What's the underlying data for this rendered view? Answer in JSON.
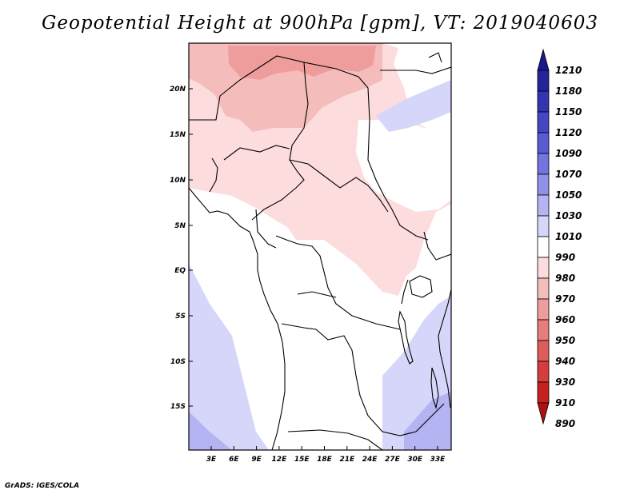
{
  "title": "Geopotential Height at 900hPa [gpm], VT: 2019040603",
  "credit": "GrADS: IGES/COLA",
  "map": {
    "lat_ticks": [
      "20N",
      "15N",
      "10N",
      "5N",
      "EQ",
      "5S",
      "10S",
      "15S"
    ],
    "lon_ticks": [
      "3E",
      "6E",
      "9E",
      "12E",
      "15E",
      "18E",
      "21E",
      "24E",
      "27E",
      "30E",
      "33E"
    ]
  },
  "colorbar": {
    "labels": [
      "1210",
      "1180",
      "1150",
      "1120",
      "1090",
      "1070",
      "1050",
      "1030",
      "1010",
      "990",
      "980",
      "970",
      "960",
      "950",
      "940",
      "930",
      "910",
      "890"
    ],
    "colors": [
      "#1a1a8c",
      "#23239a",
      "#3434b0",
      "#4646c4",
      "#5a5ad4",
      "#7474e0",
      "#9090ea",
      "#b4b4f2",
      "#d6d6fa",
      "#ffffff",
      "#fcdcdc",
      "#f5bcbc",
      "#ee9c9c",
      "#e67c7c",
      "#de5c5c",
      "#d63c3c",
      "#c82020",
      "#b01010"
    ]
  }
}
